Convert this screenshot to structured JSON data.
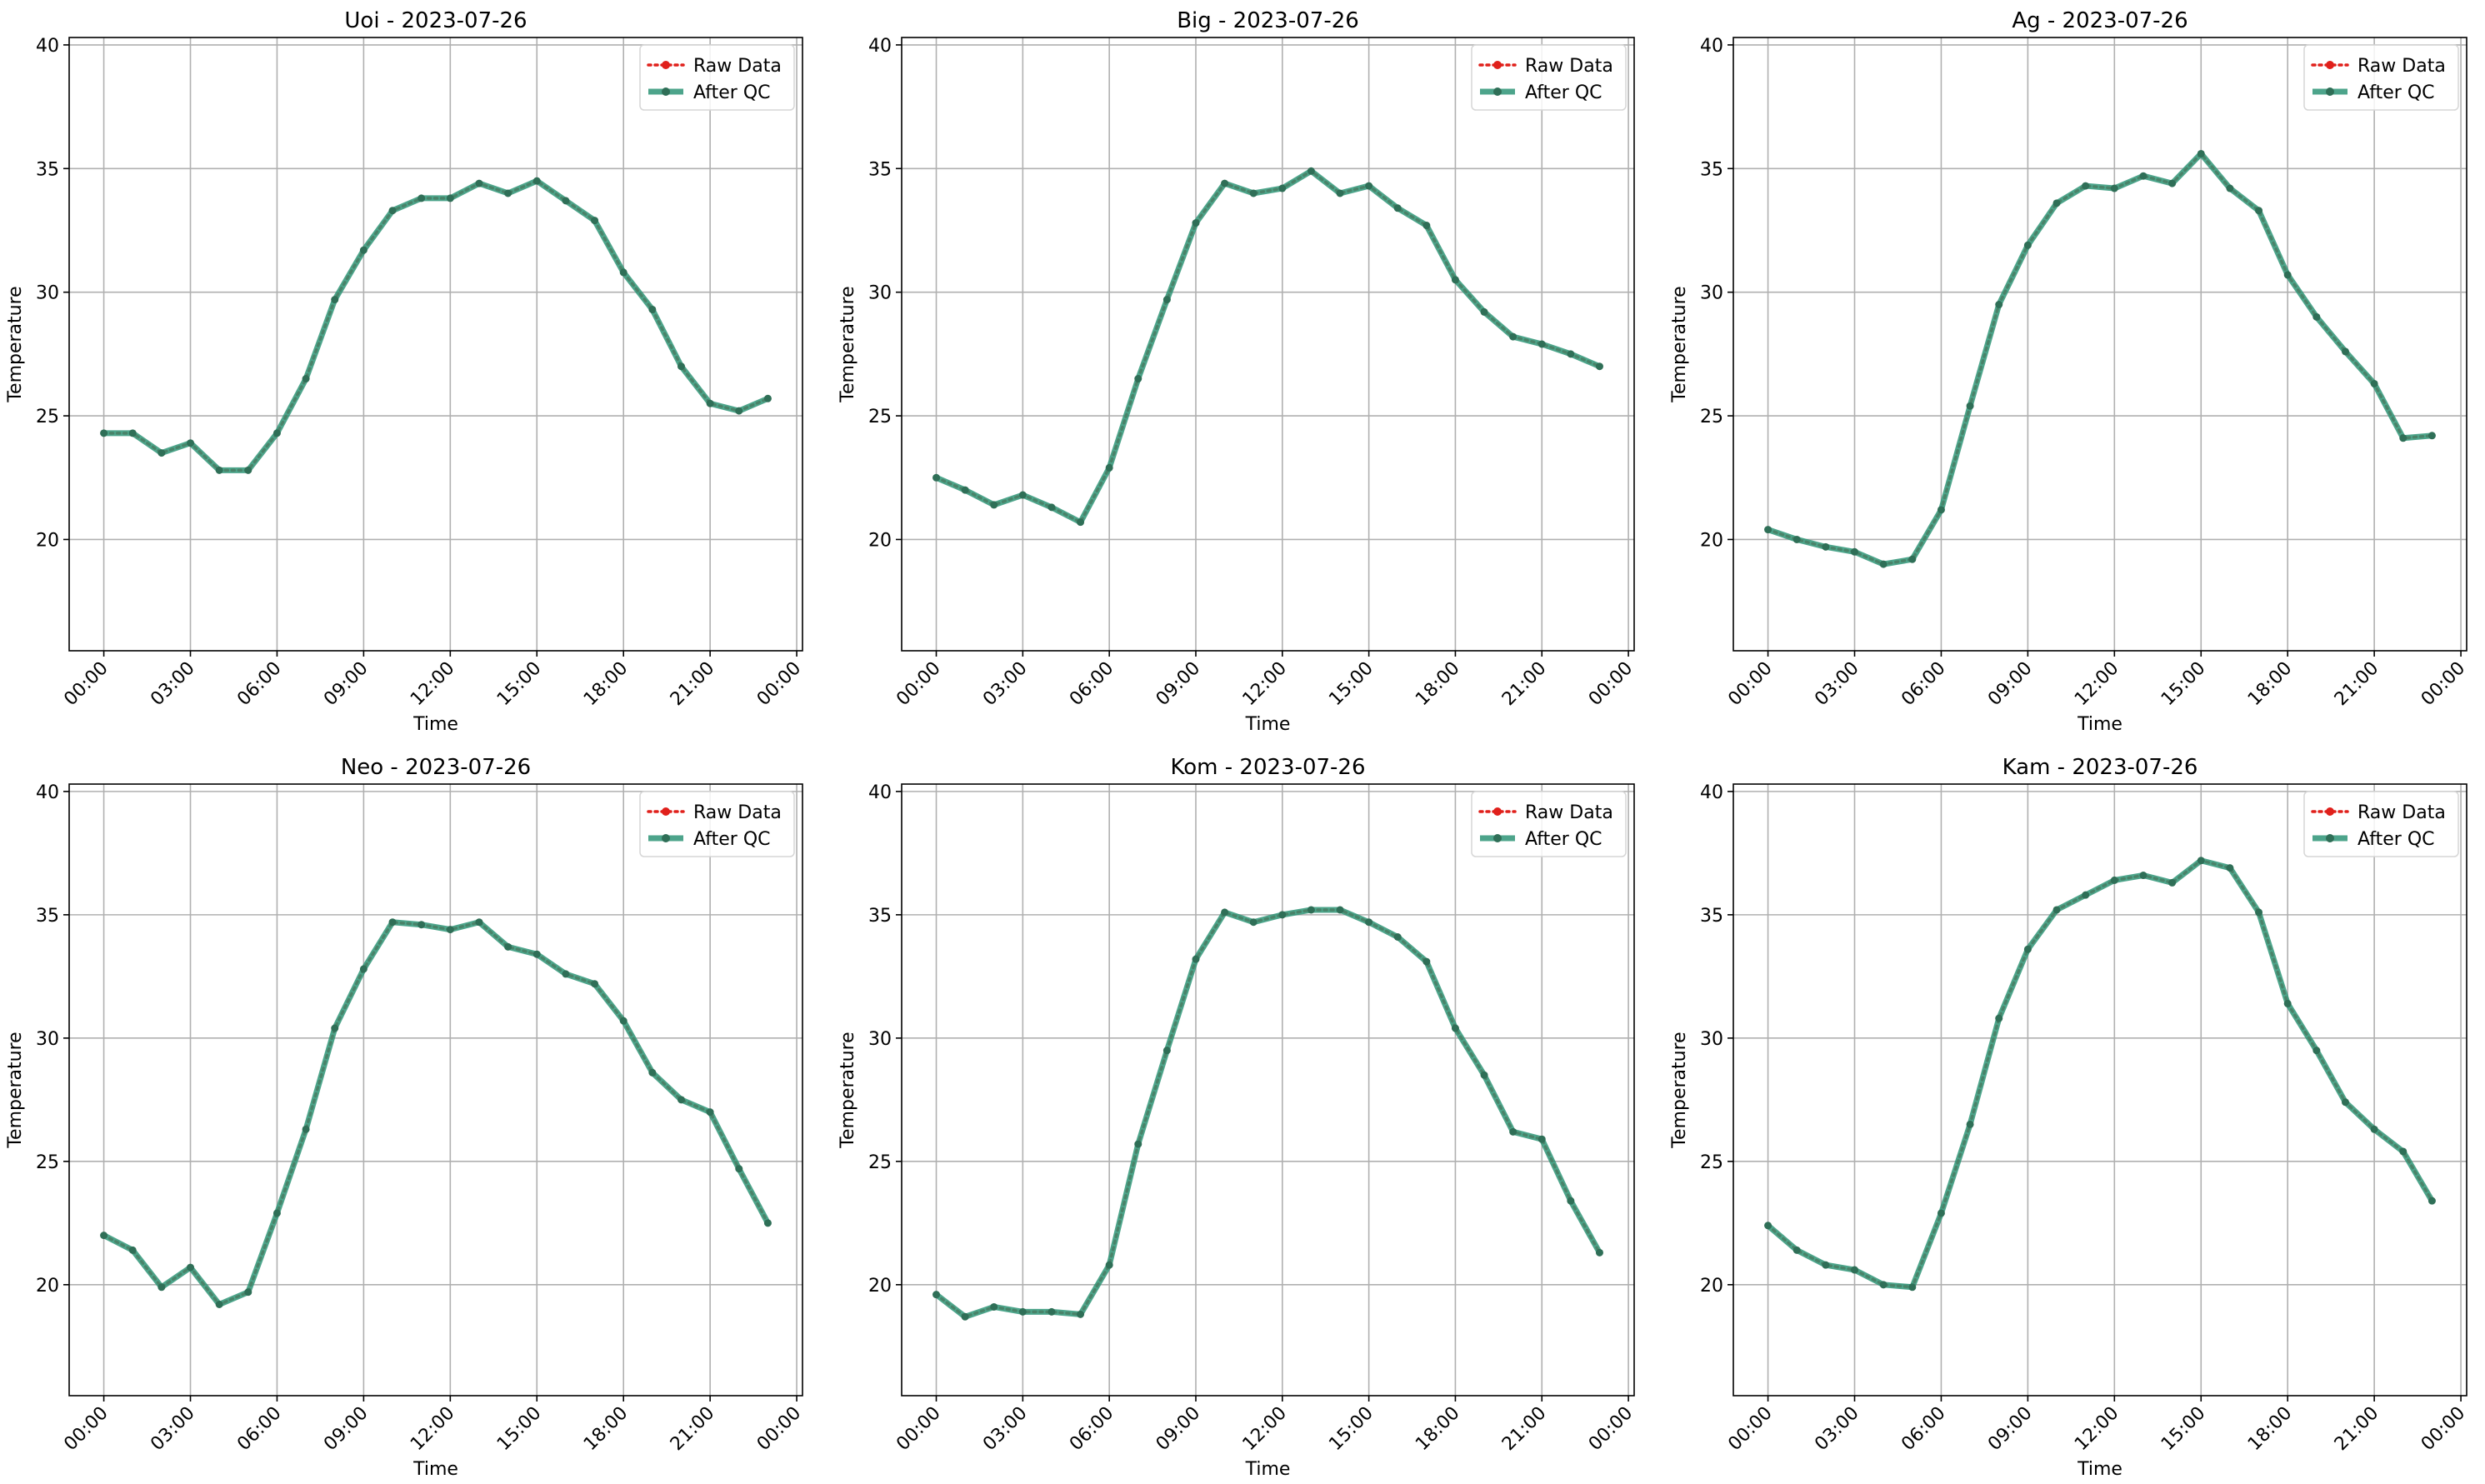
{
  "legend": {
    "raw_label": "Raw Data",
    "qc_label": "After QC",
    "placement": "upper-right"
  },
  "colors": {
    "raw": "#e0201b",
    "qc": "#2e9577",
    "marker": "#2f6f57",
    "grid": "#b0b0b0",
    "axes": "#000000"
  },
  "chart_data": [
    {
      "type": "line",
      "title": "Uoi - 2023-07-26",
      "xlabel": "Time",
      "ylabel": "Temperature",
      "x_hours": [
        0,
        1,
        2,
        3,
        4,
        5,
        6,
        7,
        8,
        9,
        10,
        11,
        12,
        13,
        14,
        15,
        16,
        17,
        18,
        19,
        20,
        21,
        22,
        23
      ],
      "xticks": [
        "00:00",
        "03:00",
        "06:00",
        "09:00",
        "12:00",
        "15:00",
        "18:00",
        "21:00",
        "00:00"
      ],
      "xlim": [
        -1.2,
        24.2
      ],
      "ylim": [
        15.5,
        40.3
      ],
      "yticks": [
        20,
        25,
        30,
        35,
        40
      ],
      "grid": true,
      "series": [
        {
          "name": "Raw Data",
          "values": [
            24.3,
            24.3,
            23.5,
            23.9,
            22.8,
            22.8,
            24.3,
            26.5,
            29.7,
            31.7,
            33.3,
            33.8,
            33.8,
            34.4,
            34.0,
            34.5,
            33.7,
            32.9,
            30.8,
            29.3,
            27.0,
            25.5,
            25.2,
            25.7
          ]
        },
        {
          "name": "After QC",
          "values": [
            24.3,
            24.3,
            23.5,
            23.9,
            22.8,
            22.8,
            24.3,
            26.5,
            29.7,
            31.7,
            33.3,
            33.8,
            33.8,
            34.4,
            34.0,
            34.5,
            33.7,
            32.9,
            30.8,
            29.3,
            27.0,
            25.5,
            25.2,
            25.7
          ]
        }
      ]
    },
    {
      "type": "line",
      "title": "Big - 2023-07-26",
      "xlabel": "Time",
      "ylabel": "Temperature",
      "x_hours": [
        0,
        1,
        2,
        3,
        4,
        5,
        6,
        7,
        8,
        9,
        10,
        11,
        12,
        13,
        14,
        15,
        16,
        17,
        18,
        19,
        20,
        21,
        22,
        23
      ],
      "xticks": [
        "00:00",
        "03:00",
        "06:00",
        "09:00",
        "12:00",
        "15:00",
        "18:00",
        "21:00",
        "00:00"
      ],
      "xlim": [
        -1.2,
        24.2
      ],
      "ylim": [
        15.5,
        40.3
      ],
      "yticks": [
        20,
        25,
        30,
        35,
        40
      ],
      "grid": true,
      "series": [
        {
          "name": "Raw Data",
          "values": [
            22.5,
            22.0,
            21.4,
            21.8,
            21.3,
            20.7,
            22.9,
            26.5,
            29.7,
            32.8,
            34.4,
            34.0,
            34.2,
            34.9,
            34.0,
            34.3,
            33.4,
            32.7,
            30.5,
            29.2,
            28.2,
            27.9,
            27.5,
            27.0
          ]
        },
        {
          "name": "After QC",
          "values": [
            22.5,
            22.0,
            21.4,
            21.8,
            21.3,
            20.7,
            22.9,
            26.5,
            29.7,
            32.8,
            34.4,
            34.0,
            34.2,
            34.9,
            34.0,
            34.3,
            33.4,
            32.7,
            30.5,
            29.2,
            28.2,
            27.9,
            27.5,
            27.0
          ]
        }
      ]
    },
    {
      "type": "line",
      "title": "Ag - 2023-07-26",
      "xlabel": "Time",
      "ylabel": "Temperature",
      "x_hours": [
        0,
        1,
        2,
        3,
        4,
        5,
        6,
        7,
        8,
        9,
        10,
        11,
        12,
        13,
        14,
        15,
        16,
        17,
        18,
        19,
        20,
        21,
        22,
        23
      ],
      "xticks": [
        "00:00",
        "03:00",
        "06:00",
        "09:00",
        "12:00",
        "15:00",
        "18:00",
        "21:00",
        "00:00"
      ],
      "xlim": [
        -1.2,
        24.2
      ],
      "ylim": [
        15.5,
        40.3
      ],
      "yticks": [
        20,
        25,
        30,
        35,
        40
      ],
      "grid": true,
      "series": [
        {
          "name": "Raw Data",
          "values": [
            20.4,
            20.0,
            19.7,
            19.5,
            19.0,
            19.2,
            21.2,
            25.4,
            29.5,
            31.9,
            33.6,
            34.3,
            34.2,
            34.7,
            34.4,
            35.6,
            34.2,
            33.3,
            30.7,
            29.0,
            27.6,
            26.3,
            24.1,
            24.2
          ]
        },
        {
          "name": "After QC",
          "values": [
            20.4,
            20.0,
            19.7,
            19.5,
            19.0,
            19.2,
            21.2,
            25.4,
            29.5,
            31.9,
            33.6,
            34.3,
            34.2,
            34.7,
            34.4,
            35.6,
            34.2,
            33.3,
            30.7,
            29.0,
            27.6,
            26.3,
            24.1,
            24.2
          ]
        }
      ]
    },
    {
      "type": "line",
      "title": "Neo - 2023-07-26",
      "xlabel": "Time",
      "ylabel": "Temperature",
      "x_hours": [
        0,
        1,
        2,
        3,
        4,
        5,
        6,
        7,
        8,
        9,
        10,
        11,
        12,
        13,
        14,
        15,
        16,
        17,
        18,
        19,
        20,
        21,
        22,
        23
      ],
      "xticks": [
        "00:00",
        "03:00",
        "06:00",
        "09:00",
        "12:00",
        "15:00",
        "18:00",
        "21:00",
        "00:00"
      ],
      "xlim": [
        -1.2,
        24.2
      ],
      "ylim": [
        15.5,
        40.3
      ],
      "yticks": [
        20,
        25,
        30,
        35,
        40
      ],
      "grid": true,
      "series": [
        {
          "name": "Raw Data",
          "values": [
            22.0,
            21.4,
            19.9,
            20.7,
            19.2,
            19.7,
            22.9,
            26.3,
            30.4,
            32.8,
            34.7,
            34.6,
            34.4,
            34.7,
            33.7,
            33.4,
            32.6,
            32.2,
            30.7,
            28.6,
            27.5,
            27.0,
            24.7,
            22.5
          ]
        },
        {
          "name": "After QC",
          "values": [
            22.0,
            21.4,
            19.9,
            20.7,
            19.2,
            19.7,
            22.9,
            26.3,
            30.4,
            32.8,
            34.7,
            34.6,
            34.4,
            34.7,
            33.7,
            33.4,
            32.6,
            32.2,
            30.7,
            28.6,
            27.5,
            27.0,
            24.7,
            22.5
          ]
        }
      ]
    },
    {
      "type": "line",
      "title": "Kom - 2023-07-26",
      "xlabel": "Time",
      "ylabel": "Temperature",
      "x_hours": [
        0,
        1,
        2,
        3,
        4,
        5,
        6,
        7,
        8,
        9,
        10,
        11,
        12,
        13,
        14,
        15,
        16,
        17,
        18,
        19,
        20,
        21,
        22,
        23
      ],
      "xticks": [
        "00:00",
        "03:00",
        "06:00",
        "09:00",
        "12:00",
        "15:00",
        "18:00",
        "21:00",
        "00:00"
      ],
      "xlim": [
        -1.2,
        24.2
      ],
      "ylim": [
        15.5,
        40.3
      ],
      "yticks": [
        20,
        25,
        30,
        35,
        40
      ],
      "grid": true,
      "series": [
        {
          "name": "Raw Data",
          "values": [
            19.6,
            18.7,
            19.1,
            18.9,
            18.9,
            18.8,
            20.8,
            25.7,
            29.5,
            33.2,
            35.1,
            34.7,
            35.0,
            35.2,
            35.2,
            34.7,
            34.1,
            33.1,
            30.4,
            28.5,
            26.2,
            25.9,
            23.4,
            21.3
          ]
        },
        {
          "name": "After QC",
          "values": [
            19.6,
            18.7,
            19.1,
            18.9,
            18.9,
            18.8,
            20.8,
            25.7,
            29.5,
            33.2,
            35.1,
            34.7,
            35.0,
            35.2,
            35.2,
            34.7,
            34.1,
            33.1,
            30.4,
            28.5,
            26.2,
            25.9,
            23.4,
            21.3
          ]
        }
      ]
    },
    {
      "type": "line",
      "title": "Kam - 2023-07-26",
      "xlabel": "Time",
      "ylabel": "Temperature",
      "x_hours": [
        0,
        1,
        2,
        3,
        4,
        5,
        6,
        7,
        8,
        9,
        10,
        11,
        12,
        13,
        14,
        15,
        16,
        17,
        18,
        19,
        20,
        21,
        22,
        23
      ],
      "xticks": [
        "00:00",
        "03:00",
        "06:00",
        "09:00",
        "12:00",
        "15:00",
        "18:00",
        "21:00",
        "00:00"
      ],
      "xlim": [
        -1.2,
        24.2
      ],
      "ylim": [
        15.5,
        40.3
      ],
      "yticks": [
        20,
        25,
        30,
        35,
        40
      ],
      "grid": true,
      "series": [
        {
          "name": "Raw Data",
          "values": [
            22.4,
            21.4,
            20.8,
            20.6,
            20.0,
            19.9,
            22.9,
            26.5,
            30.8,
            33.6,
            35.2,
            35.8,
            36.4,
            36.6,
            36.3,
            37.2,
            36.9,
            35.1,
            31.4,
            29.5,
            27.4,
            26.3,
            25.4,
            23.4
          ]
        },
        {
          "name": "After QC",
          "values": [
            22.4,
            21.4,
            20.8,
            20.6,
            20.0,
            19.9,
            22.9,
            26.5,
            30.8,
            33.6,
            35.2,
            35.8,
            36.4,
            36.6,
            36.3,
            37.2,
            36.9,
            35.1,
            31.4,
            29.5,
            27.4,
            26.3,
            25.4,
            23.4
          ]
        }
      ]
    }
  ]
}
